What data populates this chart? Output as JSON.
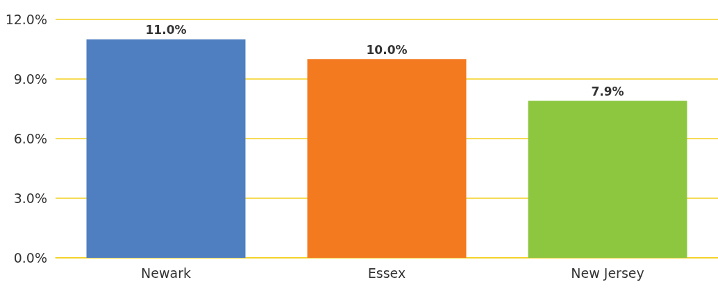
{
  "chart_data": {
    "type": "bar",
    "categories": [
      "Newark",
      "Essex",
      "New Jersey"
    ],
    "values": [
      11.0,
      10.0,
      7.9
    ],
    "colors": [
      "#4f7fc0",
      "#f47a20",
      "#8dc63f"
    ],
    "value_labels": [
      "11.0%",
      "10.0%",
      "7.9%"
    ],
    "ylim": [
      0,
      12
    ],
    "yticks": [
      {
        "value": 0,
        "label": "0.0%"
      },
      {
        "value": 3,
        "label": "3.0%"
      },
      {
        "value": 6,
        "label": "6.0%"
      },
      {
        "value": 9,
        "label": "9.0%"
      },
      {
        "value": 12,
        "label": "12.0%"
      }
    ],
    "grid": "y"
  }
}
